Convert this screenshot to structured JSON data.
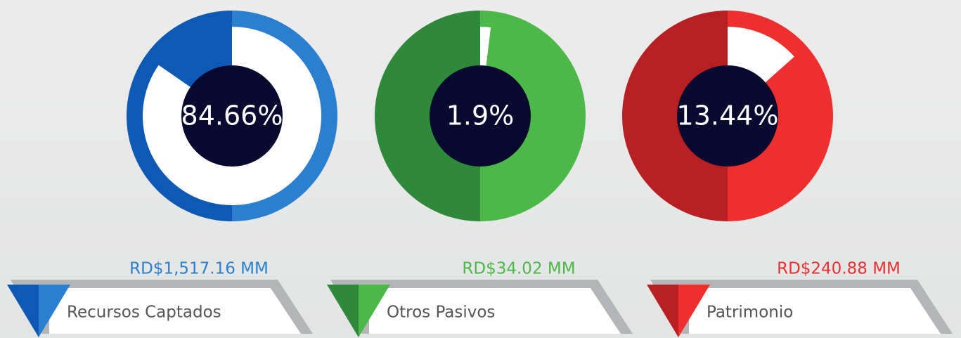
{
  "chart_data": [
    {
      "type": "donut",
      "name": "Recursos Captados",
      "amount": "RD$1,517.16 MM",
      "values": [
        84.66
      ],
      "value_labels": [
        "84.66%"
      ],
      "color": "#2a7fd0",
      "shade": "#0d59b3"
    },
    {
      "type": "donut",
      "name": "Otros Pasivos",
      "amount": "RD$34.02 MM",
      "values": [
        1.9
      ],
      "value_labels": [
        "1.9%"
      ],
      "color": "#4cb848",
      "shade": "#2e8a3a"
    },
    {
      "type": "donut",
      "name": "Patrimonio",
      "amount": "RD$240.88 MM",
      "values": [
        13.44
      ],
      "value_labels": [
        "13.44%"
      ],
      "color": "#ee2f2e",
      "shade": "#b81f23"
    }
  ]
}
